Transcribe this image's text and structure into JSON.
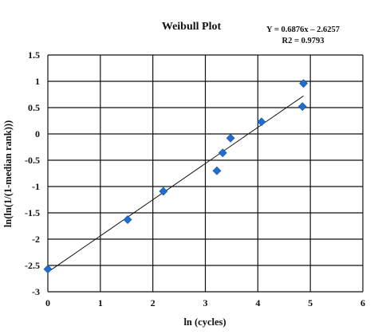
{
  "chart_data": {
    "type": "scatter",
    "title": "Weibull Plot",
    "xlabel": "ln (cycles)",
    "ylabel": "ln(ln(1/(1-median rank)))",
    "xlim": [
      0,
      6
    ],
    "ylim": [
      -3,
      1.5
    ],
    "xticks": [
      0,
      1,
      2,
      3,
      4,
      5,
      6
    ],
    "xtick_labels": [
      "0",
      "1",
      "2",
      "3",
      "4",
      "5",
      "6"
    ],
    "yticks": [
      1.5,
      1,
      0.5,
      0,
      -0.5,
      -1,
      -1.5,
      -2,
      -2.5,
      -3
    ],
    "ytick_labels": [
      "1.5",
      "1",
      "0.5",
      "0",
      "-0.5",
      "-1",
      "-1.5",
      "-2",
      "-2.5",
      "-3"
    ],
    "grid": true,
    "marker_color": "#1f6fd1",
    "series": [
      {
        "points": [
          {
            "x": 0.0,
            "y": -2.57
          },
          {
            "x": 1.52,
            "y": -1.63
          },
          {
            "x": 2.2,
            "y": -1.09
          },
          {
            "x": 3.22,
            "y": -0.7
          },
          {
            "x": 3.33,
            "y": -0.36
          },
          {
            "x": 3.48,
            "y": -0.08
          },
          {
            "x": 4.07,
            "y": 0.23
          },
          {
            "x": 4.85,
            "y": 0.52
          },
          {
            "x": 4.87,
            "y": 0.96
          }
        ]
      }
    ],
    "trendline": {
      "slope": 0.6876,
      "intercept": -2.6257,
      "x_range": [
        0,
        4.87
      ],
      "equation_label": "Y = 0.6876x – 2.6257",
      "r2_label": "R2 = 0.9793"
    }
  }
}
